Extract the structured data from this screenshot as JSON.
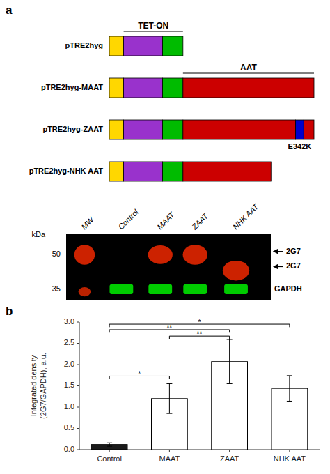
{
  "chart_data": [
    {
      "type": "diagram",
      "title": "a",
      "constructs": [
        {
          "name": "pTRE2hyg",
          "segments": [
            {
              "color": "#FFD700",
              "start": 0.0,
              "width": 0.07
            },
            {
              "color": "#9932CC",
              "start": 0.07,
              "width": 0.19
            },
            {
              "color": "#00BB00",
              "start": 0.26,
              "width": 0.1
            }
          ]
        },
        {
          "name": "pTRE2hyg-MAAT",
          "segments": [
            {
              "color": "#FFD700",
              "start": 0.0,
              "width": 0.07
            },
            {
              "color": "#9932CC",
              "start": 0.07,
              "width": 0.19
            },
            {
              "color": "#00BB00",
              "start": 0.26,
              "width": 0.1
            },
            {
              "color": "#CC0000",
              "start": 0.36,
              "width": 0.64
            }
          ]
        },
        {
          "name": "pTRE2hyg-ZAAT",
          "segments": [
            {
              "color": "#FFD700",
              "start": 0.0,
              "width": 0.07
            },
            {
              "color": "#9932CC",
              "start": 0.07,
              "width": 0.19
            },
            {
              "color": "#00BB00",
              "start": 0.26,
              "width": 0.1
            },
            {
              "color": "#CC0000",
              "start": 0.36,
              "width": 0.55
            },
            {
              "color": "#0000CC",
              "start": 0.91,
              "width": 0.04
            },
            {
              "color": "#CC0000",
              "start": 0.95,
              "width": 0.05
            }
          ]
        },
        {
          "name": "pTRE2hyg-NHK AAT",
          "segments": [
            {
              "color": "#FFD700",
              "start": 0.0,
              "width": 0.07
            },
            {
              "color": "#9932CC",
              "start": 0.07,
              "width": 0.19
            },
            {
              "color": "#00BB00",
              "start": 0.26,
              "width": 0.1
            },
            {
              "color": "#CC0000",
              "start": 0.36,
              "width": 0.43
            }
          ]
        }
      ],
      "annotations": [
        "TET-ON",
        "AAT",
        "E342K"
      ]
    },
    {
      "type": "blot",
      "categories": [
        "MW",
        "Control",
        "MAAT",
        "ZAAT",
        "NHK AAT"
      ],
      "ladder": [
        50,
        35
      ],
      "ladder_label": "kDa",
      "annotations": [
        "2G7",
        "2G7",
        "GAPDH"
      ]
    },
    {
      "type": "bar",
      "title": "b",
      "categories": [
        "Control",
        "MAAT",
        "ZAAT",
        "NHK AAT"
      ],
      "values": [
        0.12,
        1.2,
        2.07,
        1.44
      ],
      "errors": [
        0.04,
        0.35,
        0.52,
        0.3
      ],
      "colors": [
        "#1a1a1a",
        "#ffffff",
        "#ffffff",
        "#ffffff"
      ],
      "ylabel": "Integrated density\n(2G7/GAPDH), a.u.",
      "ylim": [
        0,
        3.0
      ],
      "yticks": [
        {
          "value": 0.0,
          "label": "0.0"
        },
        0.5,
        {
          "value": 1.0,
          "label": "1.0"
        },
        1.5,
        {
          "value": 2.0,
          "label": "2.0"
        },
        2.5,
        {
          "value": 3.0,
          "label": "3.0"
        }
      ],
      "grid": false,
      "annotations": [
        {
          "x1": "Control",
          "x2": "MAAT",
          "y": 1.73,
          "label": "*"
        },
        {
          "x1": "MAAT",
          "x2": "ZAAT",
          "y": 2.67,
          "label": "**"
        },
        {
          "x1": "Control",
          "x2": "ZAAT",
          "y": 2.82,
          "label": "**"
        },
        {
          "x1": "Control",
          "x2": "NHK AAT",
          "y": 2.95,
          "label": "*"
        }
      ]
    }
  ]
}
